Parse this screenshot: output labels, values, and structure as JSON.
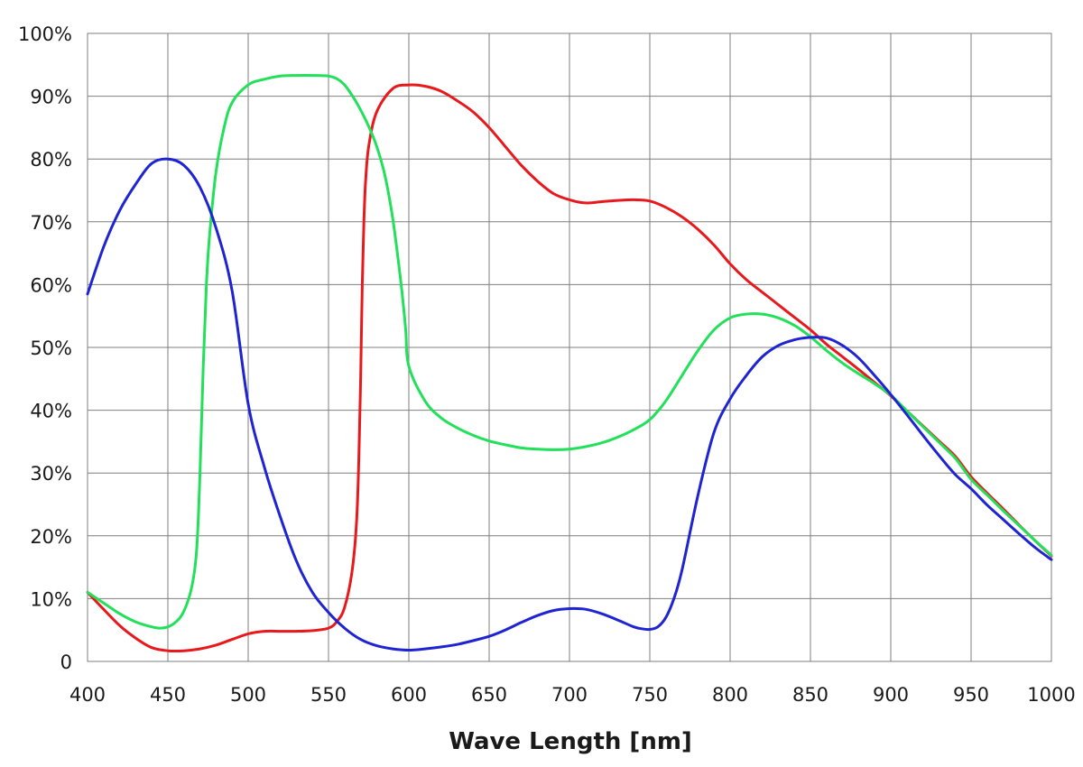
{
  "chart_data": {
    "type": "line",
    "title": "",
    "xlabel": "Wave Length [nm]",
    "ylabel": "",
    "xlim": [
      400,
      1000
    ],
    "ylim": [
      0,
      100
    ],
    "grid": true,
    "x_ticks": [
      400,
      450,
      500,
      550,
      600,
      650,
      700,
      750,
      800,
      850,
      900,
      950,
      1000
    ],
    "x_tick_labels": [
      "400",
      "450",
      "500",
      "550",
      "600",
      "650",
      "700",
      "750",
      "800",
      "850",
      "900",
      "950",
      "1000"
    ],
    "y_ticks": [
      0,
      10,
      20,
      30,
      40,
      50,
      60,
      70,
      80,
      90,
      100
    ],
    "y_tick_labels": [
      "0",
      "10%",
      "20%",
      "30%",
      "40%",
      "50%",
      "60%",
      "70%",
      "80%",
      "90%",
      "100%"
    ],
    "series": [
      {
        "color": "#e8191c",
        "x": [
          400,
          410,
          420,
          430,
          440,
          450,
          460,
          470,
          480,
          490,
          500,
          510,
          520,
          530,
          540,
          550,
          555,
          560,
          565,
          568,
          570,
          571,
          572,
          573,
          575,
          580,
          590,
          600,
          610,
          620,
          630,
          640,
          650,
          660,
          670,
          680,
          690,
          700,
          710,
          720,
          730,
          740,
          750,
          760,
          770,
          780,
          790,
          800,
          810,
          820,
          830,
          840,
          850,
          860,
          870,
          880,
          890,
          900,
          910,
          920,
          930,
          940,
          950,
          960,
          970,
          980,
          990,
          1000
        ],
        "values": [
          11,
          8.3,
          5.7,
          3.7,
          2.2,
          1.7,
          1.7,
          2.0,
          2.6,
          3.5,
          4.4,
          4.8,
          4.8,
          4.8,
          4.9,
          5.3,
          6.3,
          8.6,
          15,
          25,
          45,
          60,
          70,
          76,
          82,
          87.5,
          91.2,
          91.8,
          91.6,
          90.8,
          89.3,
          87.5,
          85.0,
          82.0,
          79.0,
          76.5,
          74.5,
          73.5,
          73.0,
          73.2,
          73.4,
          73.5,
          73.3,
          72.3,
          70.8,
          68.8,
          66.3,
          63.3,
          60.8,
          58.8,
          56.8,
          54.8,
          52.8,
          50.5,
          48.5,
          46.5,
          44.4,
          42.3,
          39.9,
          37.5,
          35.1,
          32.7,
          29.4,
          26.8,
          24.3,
          21.7,
          19.2,
          16.8
        ]
      },
      {
        "color": "#23e05a",
        "x": [
          400,
          410,
          420,
          430,
          440,
          445,
          450,
          455,
          460,
          465,
          468,
          470,
          472,
          474,
          476,
          480,
          485,
          490,
          500,
          510,
          520,
          530,
          540,
          550,
          555,
          560,
          565,
          570,
          575,
          580,
          585,
          590,
          595,
          598,
          600,
          610,
          620,
          630,
          640,
          650,
          660,
          670,
          680,
          690,
          700,
          710,
          720,
          730,
          740,
          750,
          760,
          770,
          780,
          790,
          800,
          810,
          820,
          830,
          840,
          850,
          860,
          870,
          880,
          890,
          900,
          910,
          920,
          930,
          940,
          950,
          960,
          970,
          980,
          990,
          1000
        ],
        "values": [
          11,
          9.3,
          7.6,
          6.3,
          5.5,
          5.3,
          5.5,
          6.3,
          8.0,
          12,
          18,
          30,
          47,
          60,
          68,
          78,
          85,
          89,
          91.8,
          92.7,
          93.2,
          93.3,
          93.3,
          93.2,
          92.8,
          91.8,
          90.0,
          87.8,
          85.2,
          82.0,
          77.5,
          70.5,
          60.5,
          53.0,
          47.0,
          41.5,
          38.8,
          37.2,
          36.0,
          35.1,
          34.5,
          34.0,
          33.8,
          33.7,
          33.8,
          34.2,
          34.8,
          35.7,
          36.9,
          38.5,
          41.5,
          45.5,
          49.5,
          52.8,
          54.7,
          55.3,
          55.3,
          54.7,
          53.5,
          51.7,
          49.5,
          47.5,
          45.8,
          44.2,
          42.4,
          39.9,
          37.4,
          34.9,
          32.4,
          29.0,
          26.5,
          24.0,
          21.6,
          19.2,
          16.9
        ]
      },
      {
        "color": "#1f24d3",
        "x": [
          400,
          410,
          420,
          430,
          440,
          450,
          460,
          470,
          480,
          490,
          500,
          510,
          520,
          530,
          540,
          550,
          560,
          570,
          580,
          590,
          600,
          610,
          620,
          630,
          640,
          650,
          660,
          670,
          680,
          690,
          700,
          710,
          720,
          730,
          740,
          745,
          750,
          755,
          760,
          765,
          770,
          780,
          790,
          800,
          810,
          820,
          830,
          840,
          850,
          860,
          870,
          880,
          890,
          900,
          910,
          920,
          930,
          940,
          950,
          960,
          970,
          980,
          990,
          1000
        ],
        "values": [
          58.5,
          66,
          71.8,
          76,
          79.3,
          80,
          79,
          75.5,
          69,
          59,
          41,
          31,
          23,
          16,
          11,
          7.8,
          5.3,
          3.5,
          2.5,
          2.0,
          1.8,
          2.0,
          2.3,
          2.7,
          3.3,
          4.0,
          5.0,
          6.2,
          7.3,
          8.1,
          8.4,
          8.3,
          7.6,
          6.6,
          5.5,
          5.2,
          5.1,
          5.5,
          7.0,
          10.0,
          14.5,
          26.5,
          36.5,
          41.8,
          45.5,
          48.5,
          50.3,
          51.2,
          51.6,
          51.5,
          50.3,
          48.3,
          45.5,
          42.5,
          39.3,
          36.0,
          32.8,
          29.8,
          27.5,
          24.9,
          22.6,
          20.3,
          18.1,
          16.2
        ]
      }
    ]
  }
}
